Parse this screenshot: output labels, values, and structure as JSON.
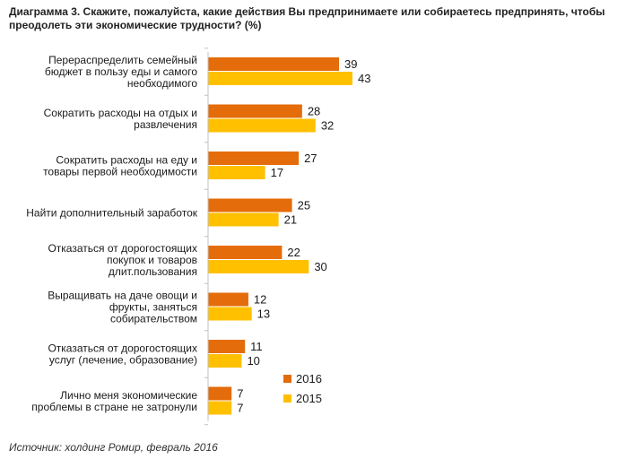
{
  "title": "Диаграмма 3. Скажите, пожалуйста, какие действия Вы предпринимаете или собираетесь предпринять, чтобы преодолеть эти экономические трудности? (%)",
  "source": "Источник: холдинг Ромир, февраль 2016",
  "colors": {
    "series_2016": "#E46C0A",
    "series_2015": "#FFC000",
    "axis": "#BFBFBF"
  },
  "chart_data": {
    "type": "bar",
    "orientation": "horizontal",
    "title": "Диаграмма 3. Скажите, пожалуйста, какие действия Вы предпринимаете или собираетесь предпринять, чтобы преодолеть эти экономические трудности? (%)",
    "xlabel": "",
    "ylabel": "",
    "xlim": [
      0,
      45
    ],
    "grid": false,
    "legend_position": "bottom-right",
    "categories": [
      [
        "Перераспределить семейный",
        "бюджет в пользу еды и самого",
        "необходимого"
      ],
      [
        "Сократить расходы на отдых и",
        "развлечения"
      ],
      [
        "Сократить расходы на еду и",
        "товары первой необходимости"
      ],
      [
        "Найти дополнительный заработок"
      ],
      [
        "Отказаться от дорогостоящих",
        "покупок и товаров",
        "длит.пользования"
      ],
      [
        "Выращивать на даче овощи и",
        "фрукты, заняться",
        "собирательством"
      ],
      [
        "Отказаться от дорогостоящих",
        "услуг (лечение, образование)"
      ],
      [
        "Лично меня экономические",
        "проблемы в стране не затронули"
      ]
    ],
    "series": [
      {
        "name": "2016",
        "values": [
          39,
          28,
          27,
          25,
          22,
          12,
          11,
          7
        ]
      },
      {
        "name": "2015",
        "values": [
          43,
          32,
          17,
          21,
          30,
          13,
          10,
          7
        ]
      }
    ]
  }
}
